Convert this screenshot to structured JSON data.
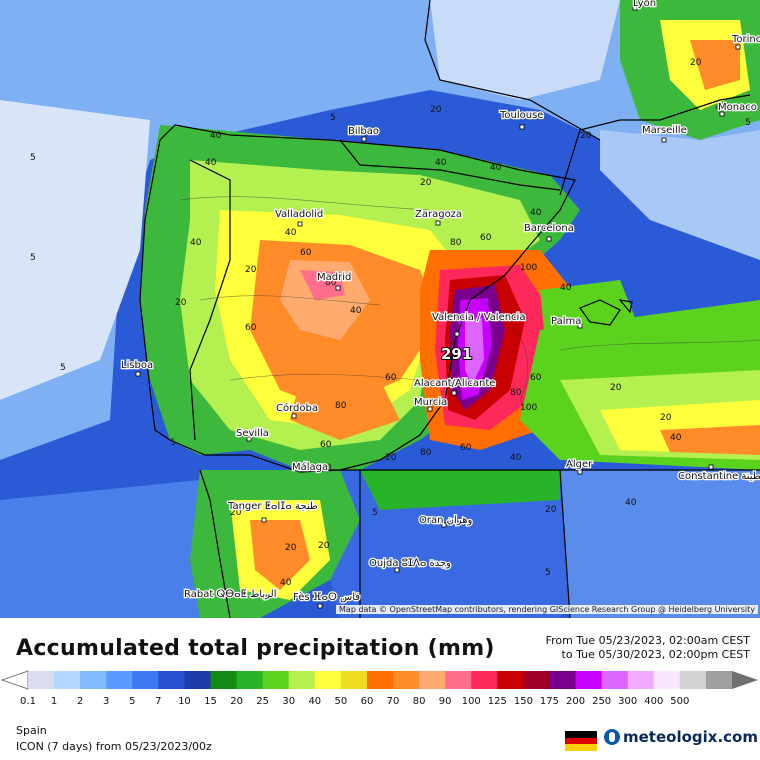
{
  "map": {
    "cities": [
      {
        "name": "Lyon"
      },
      {
        "name": "Torino"
      },
      {
        "name": "Monaco"
      },
      {
        "name": "Toulouse"
      },
      {
        "name": "Marseille"
      },
      {
        "name": "Bilbao"
      },
      {
        "name": "Zaragoza"
      },
      {
        "name": "Barcelona"
      },
      {
        "name": "Valladolid"
      },
      {
        "name": "Madrid"
      },
      {
        "name": "Valencia / Valencia"
      },
      {
        "name": "Palma"
      },
      {
        "name": "Lisboa"
      },
      {
        "name": "Alacant/Alicante"
      },
      {
        "name": "Murcia"
      },
      {
        "name": "Córdoba"
      },
      {
        "name": "Sevilla"
      },
      {
        "name": "Málaga"
      },
      {
        "name": "Alger"
      },
      {
        "name": "Constantine قسنطينة"
      },
      {
        "name": "Tanger ⵟⴰⵏⵊⴰ طنجة"
      },
      {
        "name": "Oran وهران"
      },
      {
        "name": "Oujda ⵓⵊⴷⴰ وجدة"
      },
      {
        "name": "Rabat ⵕⴱⴰⵟ الرباط"
      },
      {
        "name": "Fès ⴼⴰⵙ فاس"
      }
    ],
    "max_value": "291",
    "attribution": "Map data © OpenStreetMap contributors, rendering GIScience Research Group @ Heidelberg University"
  },
  "footer": {
    "title": "Accumulated total precipitation (mm)",
    "from": "From Tue 05/23/2023, 02:00am CEST",
    "to": "to Tue 05/30/2023, 02:00pm CEST",
    "region": "Spain",
    "model": "ICON (7 days)  from  05/23/2023/00z",
    "brand": "meteologix.com",
    "flag_colors": [
      "#000000",
      "#dd0000",
      "#ffce00"
    ]
  },
  "legend": {
    "labels": [
      "0.1",
      "1",
      "2",
      "3",
      "5",
      "7",
      "10",
      "15",
      "20",
      "25",
      "30",
      "40",
      "50",
      "60",
      "70",
      "80",
      "90",
      "100",
      "125",
      "150",
      "175",
      "200",
      "250",
      "300",
      "400",
      "500"
    ],
    "colors": [
      "#dcdcf0",
      "#b4d7ff",
      "#82b9ff",
      "#5a9bff",
      "#3c78f0",
      "#2850d2",
      "#1e3caa",
      "#148c14",
      "#28b428",
      "#5ad21e",
      "#b4f050",
      "#ffff3c",
      "#f0dc1e",
      "#ff6e00",
      "#ff8c28",
      "#ffaa6e",
      "#ff6e8c",
      "#ff285a",
      "#c80000",
      "#a00028",
      "#78008c",
      "#c800ff",
      "#dc64ff",
      "#f0aaff",
      "#fae6ff",
      "#d2d2d2",
      "#a0a0a0"
    ]
  }
}
